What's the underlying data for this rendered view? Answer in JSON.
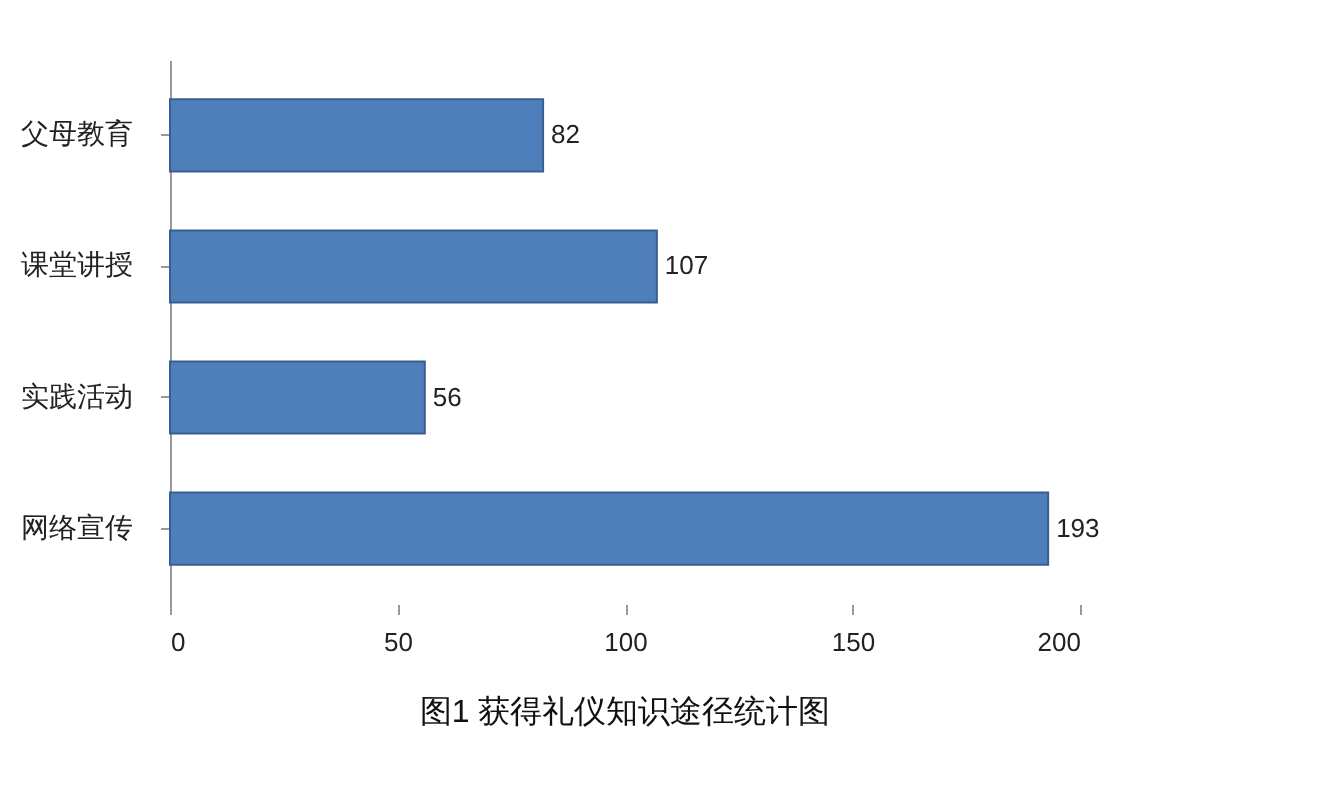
{
  "chart_data": {
    "type": "bar",
    "orientation": "horizontal",
    "title": "图1  获得礼仪知识途径统计图",
    "categories": [
      "父母教育",
      "课堂讲授",
      "实践活动",
      "网络宣传"
    ],
    "values": [
      82,
      107,
      56,
      193
    ],
    "color": "#4f7fba",
    "xlim": [
      0,
      200
    ],
    "xticks": [
      0,
      50,
      100,
      150,
      200
    ],
    "grid": false,
    "data_labels": true
  }
}
